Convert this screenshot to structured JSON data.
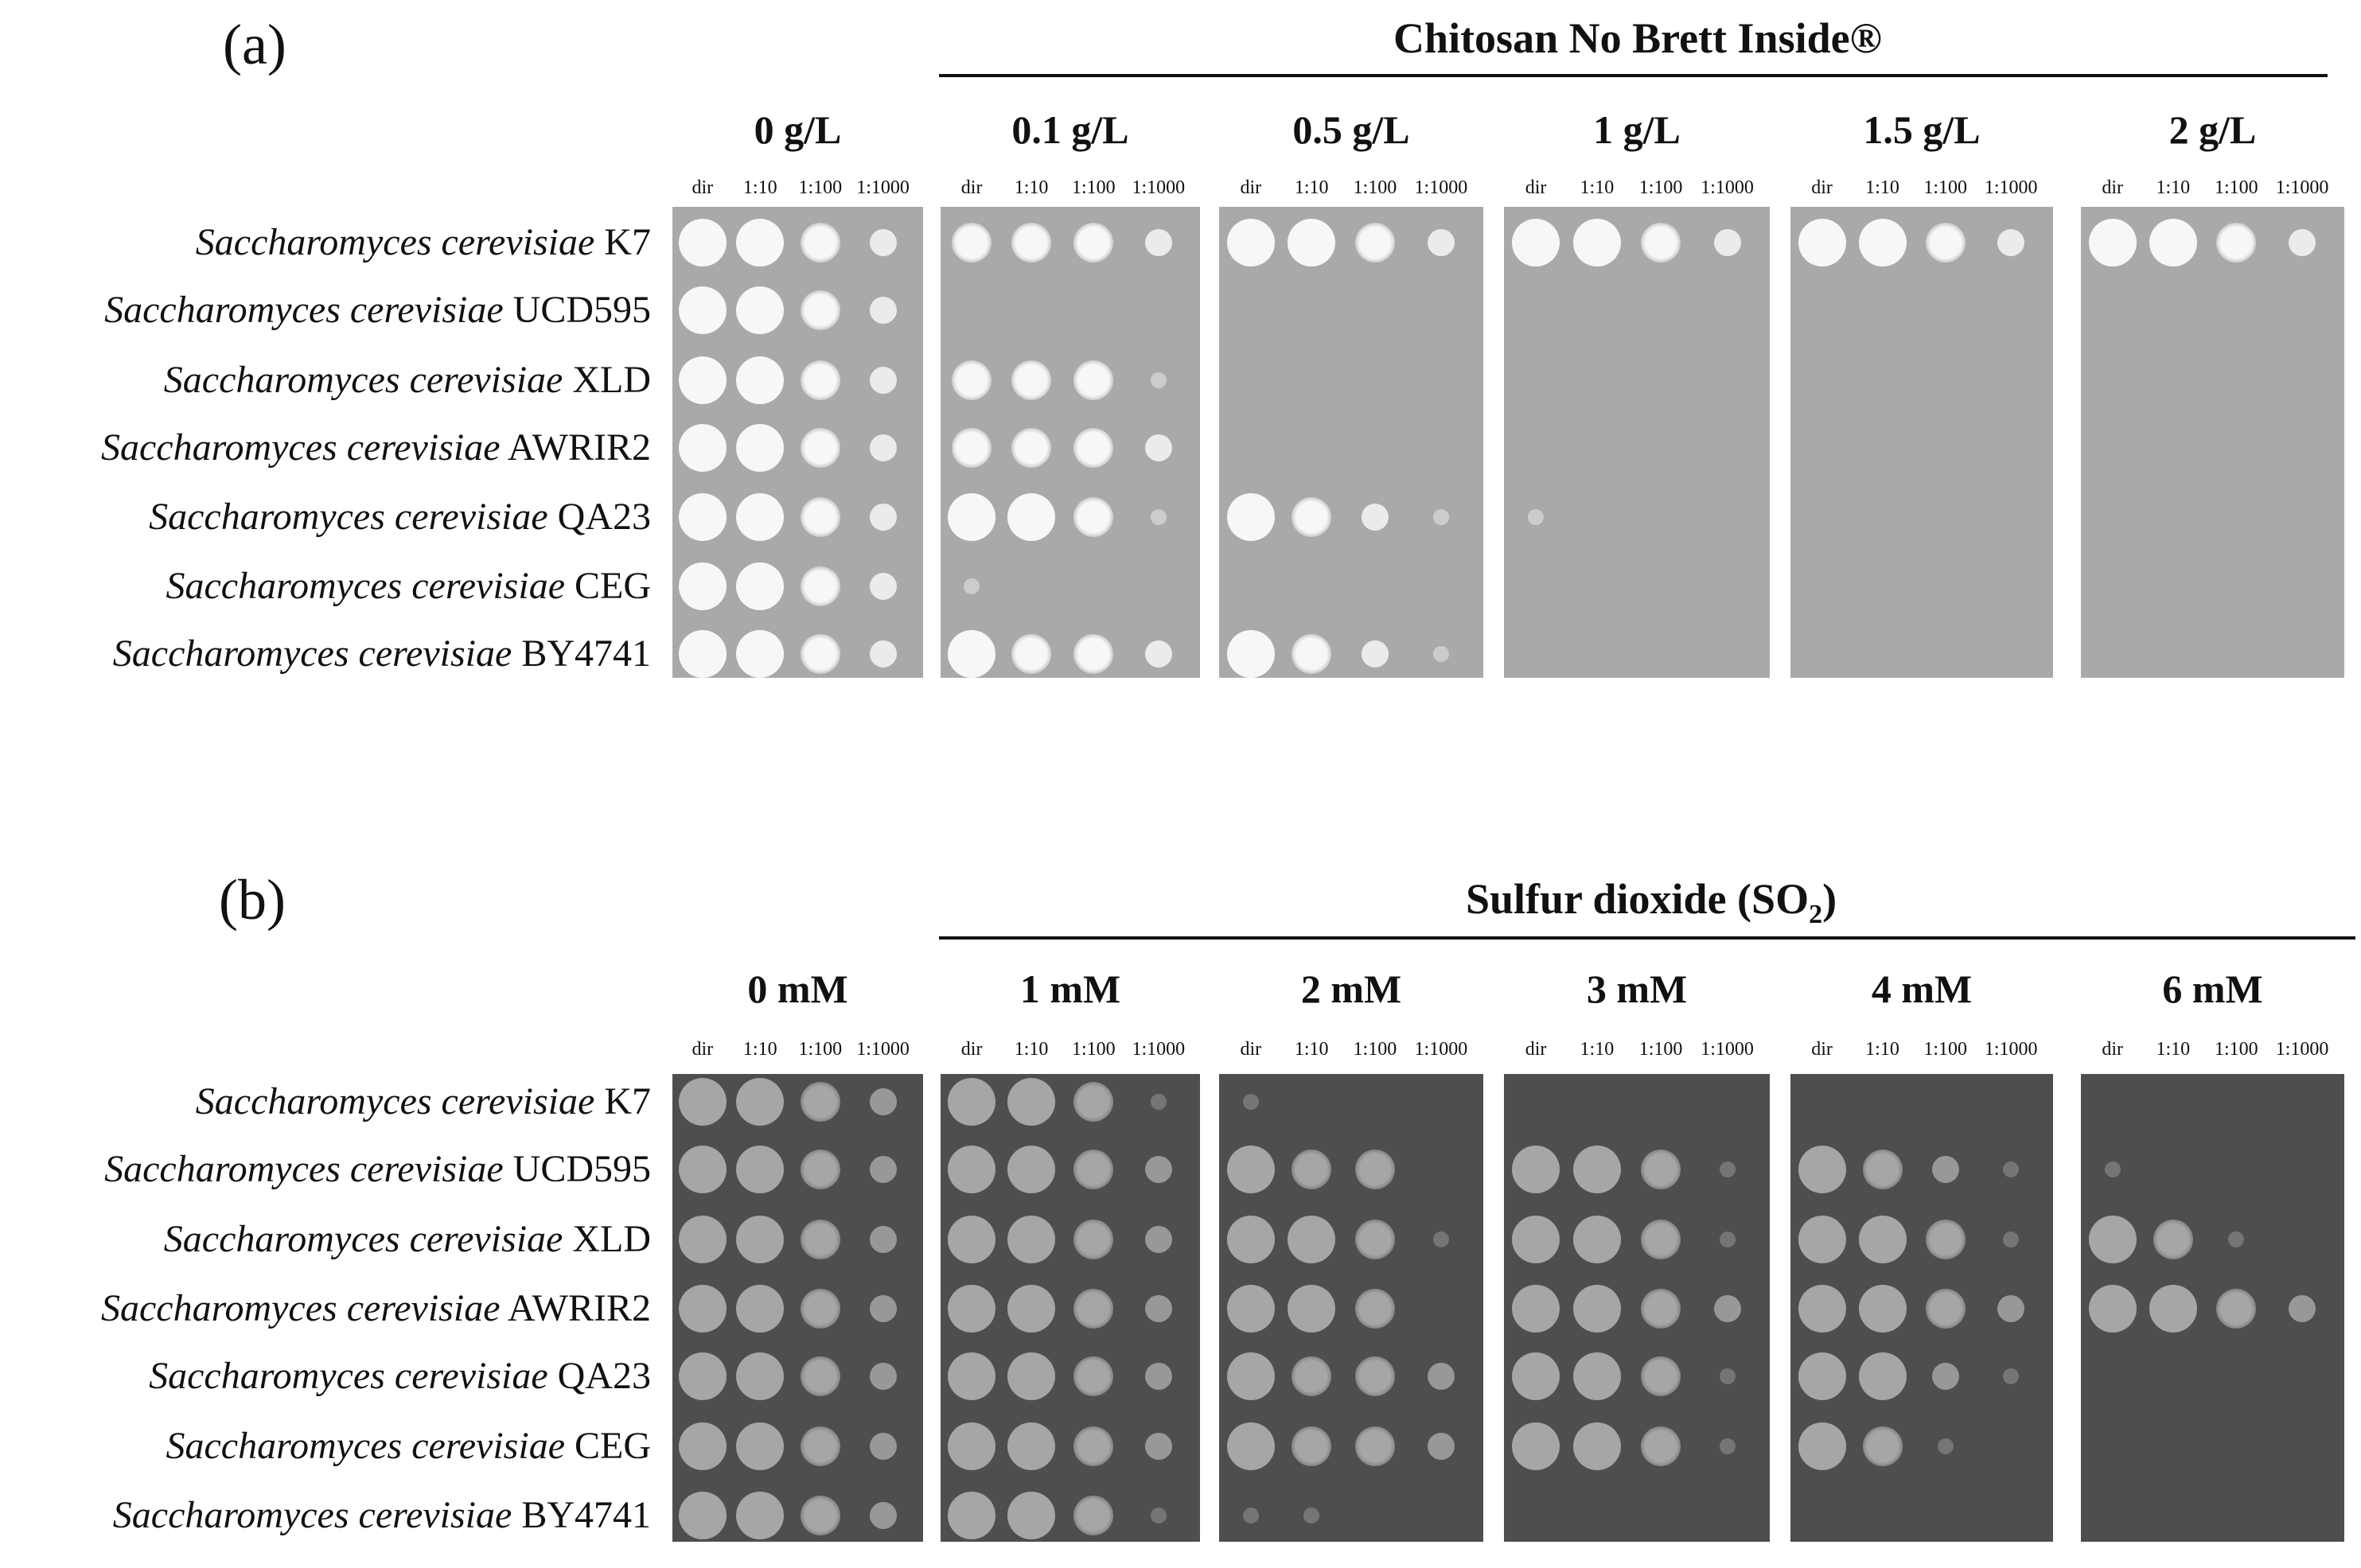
{
  "strains": [
    {
      "genus_species": "Saccharomyces cerevisiae",
      "strain": "K7"
    },
    {
      "genus_species": "Saccharomyces cerevisiae",
      "strain": "UCD595"
    },
    {
      "genus_species": "Saccharomyces cerevisiae",
      "strain": "XLD"
    },
    {
      "genus_species": "Saccharomyces cerevisiae",
      "strain": "AWRIR2"
    },
    {
      "genus_species": "Saccharomyces cerevisiae",
      "strain": "QA23"
    },
    {
      "genus_species": "Saccharomyces cerevisiae",
      "strain": "CEG"
    },
    {
      "genus_species": "Saccharomyces cerevisiae",
      "strain": "BY4741"
    }
  ],
  "dilutions": [
    "dir",
    "1:10",
    "1:100",
    "1:1000"
  ],
  "panels": [
    {
      "label": "(a)",
      "treatment": "Chitosan No Brett Inside®",
      "theme": "light",
      "concentrations": [
        "0 g/L",
        "0.1 g/L",
        "0.5 g/L",
        "1 g/L",
        "1.5 g/L",
        "2 g/L"
      ],
      "growth": [
        [
          [
            4,
            4,
            3,
            2
          ],
          [
            3,
            3,
            3,
            2
          ],
          [
            4,
            4,
            3,
            2
          ],
          [
            4,
            4,
            3,
            2
          ],
          [
            4,
            4,
            3,
            2
          ],
          [
            4,
            4,
            3,
            2
          ]
        ],
        [
          [
            4,
            4,
            3,
            2
          ],
          [
            0,
            0,
            0,
            0
          ],
          [
            0,
            0,
            0,
            0
          ],
          [
            0,
            0,
            0,
            0
          ],
          [
            0,
            0,
            0,
            0
          ],
          [
            0,
            0,
            0,
            0
          ]
        ],
        [
          [
            4,
            4,
            3,
            2
          ],
          [
            3,
            3,
            3,
            1
          ],
          [
            0,
            0,
            0,
            0
          ],
          [
            0,
            0,
            0,
            0
          ],
          [
            0,
            0,
            0,
            0
          ],
          [
            0,
            0,
            0,
            0
          ]
        ],
        [
          [
            4,
            4,
            3,
            2
          ],
          [
            3,
            3,
            3,
            2
          ],
          [
            0,
            0,
            0,
            0
          ],
          [
            0,
            0,
            0,
            0
          ],
          [
            0,
            0,
            0,
            0
          ],
          [
            0,
            0,
            0,
            0
          ]
        ],
        [
          [
            4,
            4,
            3,
            2
          ],
          [
            4,
            4,
            3,
            1
          ],
          [
            4,
            3,
            2,
            1
          ],
          [
            1,
            0,
            0,
            0
          ],
          [
            0,
            0,
            0,
            0
          ],
          [
            0,
            0,
            0,
            0
          ]
        ],
        [
          [
            4,
            4,
            3,
            2
          ],
          [
            1,
            0,
            0,
            0
          ],
          [
            0,
            0,
            0,
            0
          ],
          [
            0,
            0,
            0,
            0
          ],
          [
            0,
            0,
            0,
            0
          ],
          [
            0,
            0,
            0,
            0
          ]
        ],
        [
          [
            4,
            4,
            3,
            2
          ],
          [
            4,
            3,
            3,
            2
          ],
          [
            4,
            3,
            2,
            1
          ],
          [
            0,
            0,
            0,
            0
          ],
          [
            0,
            0,
            0,
            0
          ],
          [
            0,
            0,
            0,
            0
          ]
        ]
      ]
    },
    {
      "label": "(b)",
      "treatment_main": "Sulfur dioxide (SO",
      "treatment_sub": "2",
      "treatment_end": ")",
      "theme": "dark",
      "concentrations": [
        "0 mM",
        "1 mM",
        "2 mM",
        "3 mM",
        "4 mM",
        "6 mM"
      ],
      "growth": [
        [
          [
            4,
            4,
            3,
            2
          ],
          [
            4,
            4,
            3,
            1
          ],
          [
            1,
            0,
            0,
            0
          ],
          [
            0,
            0,
            0,
            0
          ],
          [
            0,
            0,
            0,
            0
          ],
          [
            0,
            0,
            0,
            0
          ]
        ],
        [
          [
            4,
            4,
            3,
            2
          ],
          [
            4,
            4,
            3,
            2
          ],
          [
            4,
            3,
            3,
            0
          ],
          [
            4,
            4,
            3,
            1
          ],
          [
            4,
            3,
            2,
            1
          ],
          [
            1,
            0,
            0,
            0
          ]
        ],
        [
          [
            4,
            4,
            3,
            2
          ],
          [
            4,
            4,
            3,
            2
          ],
          [
            4,
            4,
            3,
            1
          ],
          [
            4,
            4,
            3,
            1
          ],
          [
            4,
            4,
            3,
            1
          ],
          [
            4,
            3,
            1,
            0
          ]
        ],
        [
          [
            4,
            4,
            3,
            2
          ],
          [
            4,
            4,
            3,
            2
          ],
          [
            4,
            4,
            3,
            0
          ],
          [
            4,
            4,
            3,
            2
          ],
          [
            4,
            4,
            3,
            2
          ],
          [
            4,
            4,
            3,
            2
          ]
        ],
        [
          [
            4,
            4,
            3,
            2
          ],
          [
            4,
            4,
            3,
            2
          ],
          [
            4,
            3,
            3,
            2
          ],
          [
            4,
            4,
            3,
            1
          ],
          [
            4,
            4,
            2,
            1
          ],
          [
            0,
            0,
            0,
            0
          ]
        ],
        [
          [
            4,
            4,
            3,
            2
          ],
          [
            4,
            4,
            3,
            2
          ],
          [
            4,
            3,
            3,
            2
          ],
          [
            4,
            4,
            3,
            1
          ],
          [
            4,
            3,
            1,
            0
          ],
          [
            0,
            0,
            0,
            0
          ]
        ],
        [
          [
            4,
            4,
            3,
            2
          ],
          [
            4,
            4,
            3,
            1
          ],
          [
            1,
            1,
            0,
            0
          ],
          [
            0,
            0,
            0,
            0
          ],
          [
            0,
            0,
            0,
            0
          ],
          [
            0,
            0,
            0,
            0
          ]
        ]
      ]
    }
  ],
  "colors": {
    "plate_light": "#a9a9a9",
    "plate_dark": "#4e4e4e",
    "colony_light": "#f7f7f7",
    "colony_dark": "#a6a6a6"
  }
}
